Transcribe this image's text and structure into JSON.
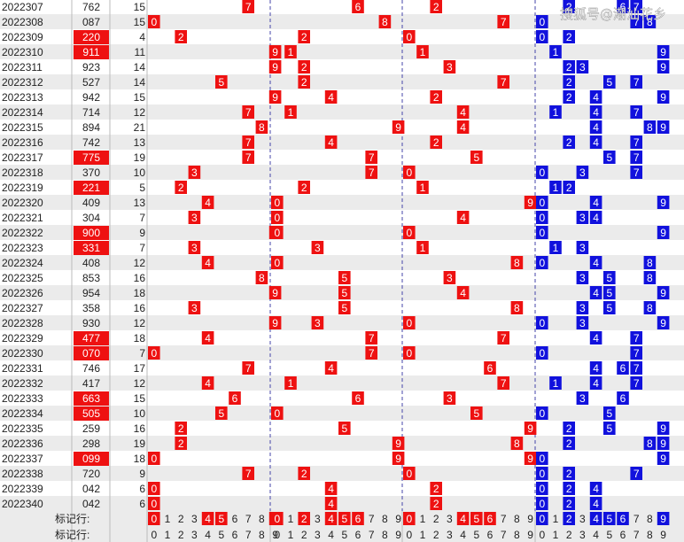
{
  "watermark": "搜狐号@潮汕花乡",
  "footer": {
    "marker_label": "标记行:",
    "index_label": "标记行:"
  },
  "colors": {
    "red": "#ee1111",
    "blue": "#1111dd",
    "row_alt": "#ebebeb",
    "grid": "#9999cc",
    "text": "#222222",
    "white": "#ffffff"
  },
  "chart_data": {
    "type": "table",
    "columns": [
      "period",
      "number",
      "sum",
      "digit1",
      "digit2",
      "digit3",
      "distinct_digits"
    ],
    "digit_labels": [
      "0",
      "1",
      "2",
      "3",
      "4",
      "5",
      "6",
      "7",
      "8",
      "9"
    ],
    "rows": [
      {
        "period": "2022307",
        "number": "762",
        "sum": "15",
        "hl": false
      },
      {
        "period": "2022308",
        "number": "087",
        "sum": "15",
        "hl": false
      },
      {
        "period": "2022309",
        "number": "220",
        "sum": "4",
        "hl": true
      },
      {
        "period": "2022310",
        "number": "911",
        "sum": "11",
        "hl": true
      },
      {
        "period": "2022311",
        "number": "923",
        "sum": "14",
        "hl": false
      },
      {
        "period": "2022312",
        "number": "527",
        "sum": "14",
        "hl": false
      },
      {
        "period": "2022313",
        "number": "942",
        "sum": "15",
        "hl": false
      },
      {
        "period": "2022314",
        "number": "714",
        "sum": "12",
        "hl": false
      },
      {
        "period": "2022315",
        "number": "894",
        "sum": "21",
        "hl": false
      },
      {
        "period": "2022316",
        "number": "742",
        "sum": "13",
        "hl": false
      },
      {
        "period": "2022317",
        "number": "775",
        "sum": "19",
        "hl": true
      },
      {
        "period": "2022318",
        "number": "370",
        "sum": "10",
        "hl": false
      },
      {
        "period": "2022319",
        "number": "221",
        "sum": "5",
        "hl": true
      },
      {
        "period": "2022320",
        "number": "409",
        "sum": "13",
        "hl": false
      },
      {
        "period": "2022321",
        "number": "304",
        "sum": "7",
        "hl": false
      },
      {
        "period": "2022322",
        "number": "900",
        "sum": "9",
        "hl": true
      },
      {
        "period": "2022323",
        "number": "331",
        "sum": "7",
        "hl": true
      },
      {
        "period": "2022324",
        "number": "408",
        "sum": "12",
        "hl": false
      },
      {
        "period": "2022325",
        "number": "853",
        "sum": "16",
        "hl": false
      },
      {
        "period": "2022326",
        "number": "954",
        "sum": "18",
        "hl": false
      },
      {
        "period": "2022327",
        "number": "358",
        "sum": "16",
        "hl": false
      },
      {
        "period": "2022328",
        "number": "930",
        "sum": "12",
        "hl": false
      },
      {
        "period": "2022329",
        "number": "477",
        "sum": "18",
        "hl": true
      },
      {
        "period": "2022330",
        "number": "070",
        "sum": "7",
        "hl": true
      },
      {
        "period": "2022331",
        "number": "746",
        "sum": "17",
        "hl": false
      },
      {
        "period": "2022332",
        "number": "417",
        "sum": "12",
        "hl": false
      },
      {
        "period": "2022333",
        "number": "663",
        "sum": "15",
        "hl": true
      },
      {
        "period": "2022334",
        "number": "505",
        "sum": "10",
        "hl": true
      },
      {
        "period": "2022335",
        "number": "259",
        "sum": "16",
        "hl": false
      },
      {
        "period": "2022336",
        "number": "298",
        "sum": "19",
        "hl": false
      },
      {
        "period": "2022337",
        "number": "099",
        "sum": "18",
        "hl": true
      },
      {
        "period": "2022338",
        "number": "720",
        "sum": "9",
        "hl": false
      },
      {
        "period": "2022339",
        "number": "042",
        "sum": "6",
        "hl": false
      },
      {
        "period": "2022340",
        "number": "042",
        "sum": "6",
        "hl": false
      }
    ],
    "footer_markers": {
      "digit1": [
        0,
        4,
        5,
        9
      ],
      "digit2": [
        0,
        2,
        4,
        5,
        6
      ],
      "digit3": [
        0,
        4,
        5,
        6
      ],
      "distinct": [
        0,
        2,
        4,
        5,
        6,
        9
      ]
    }
  }
}
